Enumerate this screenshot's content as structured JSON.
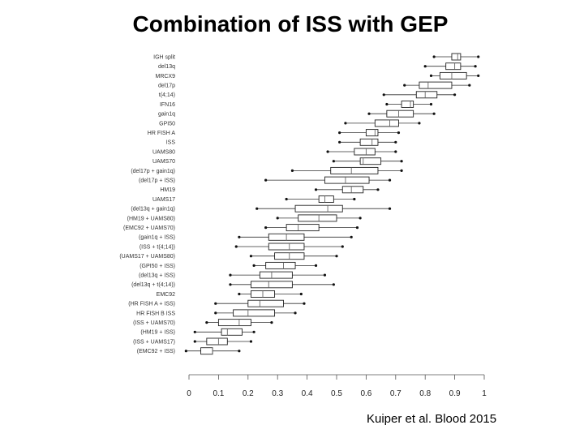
{
  "title": "Combination of ISS with GEP",
  "citation": "Kuiper et al. Blood 2015",
  "chart_data": {
    "type": "boxplot",
    "xlim": [
      0,
      1
    ],
    "x_ticks": [
      0,
      0.1,
      0.2,
      0.3,
      0.4,
      0.5,
      0.6,
      0.7,
      0.8,
      0.9,
      1
    ],
    "x_tick_labels": [
      "0",
      "0.1",
      "0.2",
      "0.3",
      "0.4",
      "0.5",
      "0.6",
      "0.7",
      "0.8",
      "0.9",
      "1"
    ],
    "categories": [
      "IGH split",
      "del13q",
      "MRCX9",
      "del17p",
      "t(4;14)",
      "IFN16",
      "gain1q",
      "GPI50",
      "HR FISH A",
      "ISS",
      "UAMS80",
      "UAMS70",
      "(del17p + gain1q)",
      "(del17p + ISS)",
      "HM19",
      "UAMS17",
      "(del13q + gain1q)",
      "(HM19 + UAMS80)",
      "(EMC92 + UAMS70)",
      "(gain1q + ISS)",
      "(ISS + t(4;14))",
      "(UAMS17 + UAMS80)",
      "(GPI50 + ISS)",
      "(del13q + ISS)",
      "(del13q + t(4;14))",
      "EMC92",
      "(HR FISH A + ISS)",
      "HR FISH B ISS",
      "(ISS + UAMS70)",
      "(HM19 + ISS)",
      "(ISS + UAMS17)",
      "(EMC92 + ISS)"
    ],
    "boxes": [
      {
        "min": 0.83,
        "q1": 0.89,
        "median": 0.91,
        "q3": 0.92,
        "max": 0.98
      },
      {
        "min": 0.8,
        "q1": 0.87,
        "median": 0.9,
        "q3": 0.92,
        "max": 0.97
      },
      {
        "min": 0.82,
        "q1": 0.85,
        "median": 0.89,
        "q3": 0.94,
        "max": 0.98
      },
      {
        "min": 0.73,
        "q1": 0.78,
        "median": 0.81,
        "q3": 0.89,
        "max": 0.95
      },
      {
        "min": 0.66,
        "q1": 0.77,
        "median": 0.8,
        "q3": 0.84,
        "max": 0.9
      },
      {
        "min": 0.67,
        "q1": 0.72,
        "median": 0.75,
        "q3": 0.76,
        "max": 0.82
      },
      {
        "min": 0.61,
        "q1": 0.67,
        "median": 0.71,
        "q3": 0.76,
        "max": 0.83
      },
      {
        "min": 0.53,
        "q1": 0.63,
        "median": 0.68,
        "q3": 0.71,
        "max": 0.78
      },
      {
        "min": 0.51,
        "q1": 0.6,
        "median": 0.63,
        "q3": 0.64,
        "max": 0.71
      },
      {
        "min": 0.51,
        "q1": 0.58,
        "median": 0.62,
        "q3": 0.64,
        "max": 0.7
      },
      {
        "min": 0.47,
        "q1": 0.56,
        "median": 0.6,
        "q3": 0.63,
        "max": 0.7
      },
      {
        "min": 0.49,
        "q1": 0.58,
        "median": 0.59,
        "q3": 0.65,
        "max": 0.72
      },
      {
        "min": 0.35,
        "q1": 0.48,
        "median": 0.55,
        "q3": 0.64,
        "max": 0.72
      },
      {
        "min": 0.26,
        "q1": 0.46,
        "median": 0.53,
        "q3": 0.61,
        "max": 0.68
      },
      {
        "min": 0.43,
        "q1": 0.52,
        "median": 0.55,
        "q3": 0.59,
        "max": 0.64
      },
      {
        "min": 0.33,
        "q1": 0.44,
        "median": 0.46,
        "q3": 0.49,
        "max": 0.56
      },
      {
        "min": 0.23,
        "q1": 0.36,
        "median": 0.47,
        "q3": 0.52,
        "max": 0.68
      },
      {
        "min": 0.3,
        "q1": 0.37,
        "median": 0.44,
        "q3": 0.5,
        "max": 0.58
      },
      {
        "min": 0.26,
        "q1": 0.33,
        "median": 0.37,
        "q3": 0.44,
        "max": 0.57
      },
      {
        "min": 0.17,
        "q1": 0.27,
        "median": 0.33,
        "q3": 0.39,
        "max": 0.55
      },
      {
        "min": 0.16,
        "q1": 0.27,
        "median": 0.34,
        "q3": 0.39,
        "max": 0.52
      },
      {
        "min": 0.21,
        "q1": 0.29,
        "median": 0.34,
        "q3": 0.39,
        "max": 0.5
      },
      {
        "min": 0.22,
        "q1": 0.26,
        "median": 0.32,
        "q3": 0.36,
        "max": 0.43
      },
      {
        "min": 0.14,
        "q1": 0.24,
        "median": 0.28,
        "q3": 0.35,
        "max": 0.46
      },
      {
        "min": 0.14,
        "q1": 0.21,
        "median": 0.27,
        "q3": 0.35,
        "max": 0.49
      },
      {
        "min": 0.17,
        "q1": 0.21,
        "median": 0.25,
        "q3": 0.29,
        "max": 0.38
      },
      {
        "min": 0.09,
        "q1": 0.2,
        "median": 0.24,
        "q3": 0.32,
        "max": 0.39
      },
      {
        "min": 0.09,
        "q1": 0.15,
        "median": 0.2,
        "q3": 0.29,
        "max": 0.36
      },
      {
        "min": 0.06,
        "q1": 0.1,
        "median": 0.17,
        "q3": 0.21,
        "max": 0.28
      },
      {
        "min": 0.02,
        "q1": 0.11,
        "median": 0.13,
        "q3": 0.18,
        "max": 0.22
      },
      {
        "min": 0.02,
        "q1": 0.06,
        "median": 0.1,
        "q3": 0.13,
        "max": 0.21
      },
      {
        "min": -0.01,
        "q1": 0.04,
        "median": 0.08,
        "q3": 0.08,
        "max": 0.17
      }
    ]
  }
}
